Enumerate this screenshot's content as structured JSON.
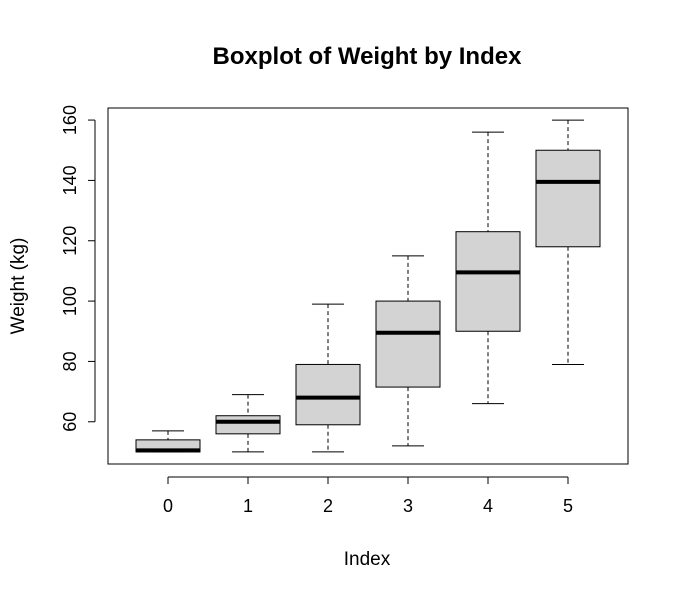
{
  "chart_data": {
    "type": "boxplot",
    "title": "Boxplot of Weight by Index",
    "xlabel": "Index",
    "ylabel": "Weight (kg)",
    "categories": [
      "0",
      "1",
      "2",
      "3",
      "4",
      "5"
    ],
    "boxes": [
      {
        "category": "0",
        "whisker_low": 50,
        "q1": 50,
        "median": 50.5,
        "q3": 54,
        "whisker_high": 57
      },
      {
        "category": "1",
        "whisker_low": 50,
        "q1": 56,
        "median": 60,
        "q3": 62,
        "whisker_high": 69
      },
      {
        "category": "2",
        "whisker_low": 50,
        "q1": 59,
        "median": 68,
        "q3": 79,
        "whisker_high": 99
      },
      {
        "category": "3",
        "whisker_low": 52,
        "q1": 71.5,
        "median": 89.5,
        "q3": 100,
        "whisker_high": 115
      },
      {
        "category": "4",
        "whisker_low": 66,
        "q1": 90,
        "median": 109.5,
        "q3": 123,
        "whisker_high": 156
      },
      {
        "category": "5",
        "whisker_low": 79,
        "q1": 118,
        "median": 139.5,
        "q3": 150,
        "whisker_high": 160
      }
    ],
    "yticks": [
      60,
      80,
      100,
      120,
      140,
      160
    ],
    "ylim": [
      46,
      164
    ],
    "xlim": [
      -0.75,
      5.75
    ],
    "box_fill": "#d3d3d3",
    "grid": false,
    "legend": "none"
  }
}
